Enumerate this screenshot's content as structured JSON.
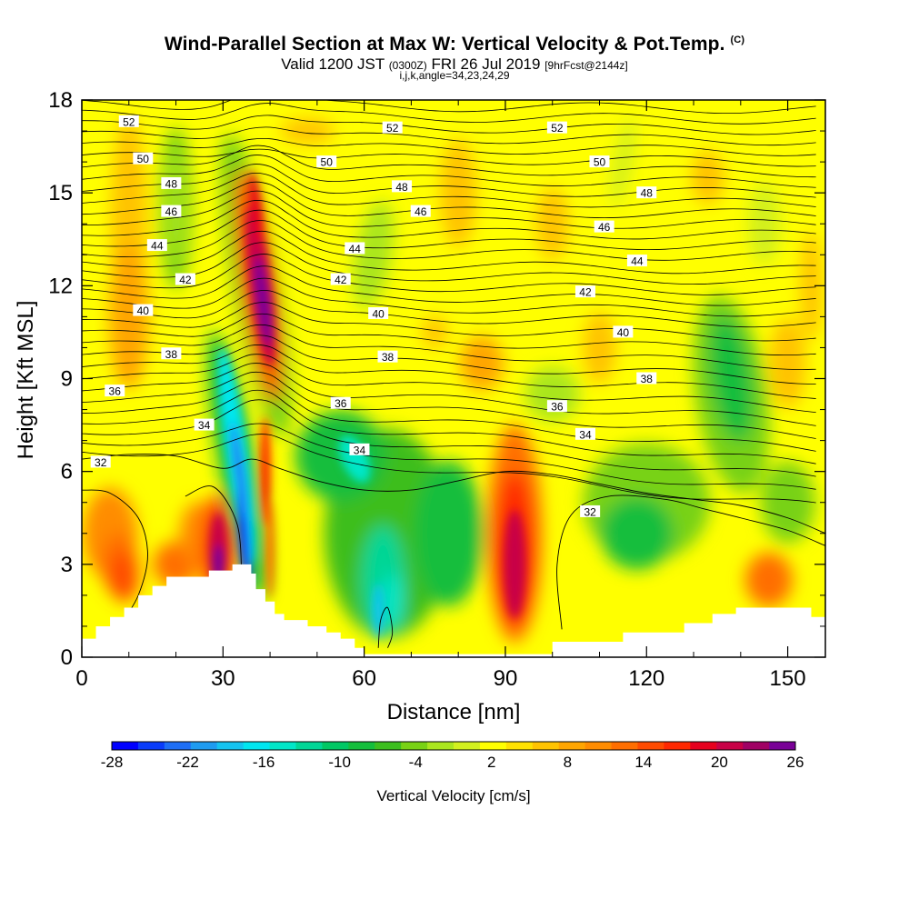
{
  "title": {
    "main": "Wind-Parallel Section at Max W: Vertical Velocity & Pot.Temp.",
    "copyright": "(C)",
    "valid_prefix": "Valid 1200 JST",
    "valid_utc": "(0300Z)",
    "valid_date": "FRI 26 Jul 2019",
    "forecast": "[9hrFcst@2144z]",
    "params": "i,j,k,angle=34,23,24,29"
  },
  "chart_data": {
    "type": "heatmap",
    "xlabel": "Distance [nm]",
    "ylabel": "Height [Kft MSL]",
    "xlim": [
      0,
      158
    ],
    "ylim": [
      0,
      18
    ],
    "x_ticks": [
      "0",
      "30",
      "60",
      "90",
      "120",
      "150"
    ],
    "y_ticks": [
      "0",
      "3",
      "6",
      "9",
      "12",
      "15",
      "18"
    ],
    "colorbar": {
      "label": "Vertical Velocity [cm/s]",
      "ticks": [
        "-28",
        "-22",
        "-16",
        "-10",
        "-4",
        "2",
        "8",
        "14",
        "20",
        "26"
      ],
      "colors": [
        "#0000ff",
        "#0a3cfa",
        "#1e6ef5",
        "#1e9bf0",
        "#14c3f0",
        "#00e6f0",
        "#00e6c8",
        "#00d696",
        "#00c864",
        "#14be3c",
        "#3cbe1e",
        "#78d214",
        "#aae61e",
        "#d2f01e",
        "#ffff00",
        "#ffe100",
        "#ffc300",
        "#ffa500",
        "#ff8c00",
        "#ff6e00",
        "#ff4b00",
        "#ff2800",
        "#e6001e",
        "#c80046",
        "#a00064",
        "#780096"
      ]
    },
    "theta_contours_K": [
      "32",
      "34",
      "36",
      "38",
      "40",
      "42",
      "44",
      "46",
      "48",
      "50",
      "52"
    ],
    "features": [
      {
        "name": "updraft core",
        "x_nm": [
          32,
          42
        ],
        "y_kft": [
          8.5,
          15
        ],
        "max_cm_s": 26
      },
      {
        "name": "downdraft core",
        "x_nm": [
          30,
          38
        ],
        "y_kft": [
          1.5,
          9
        ],
        "min_cm_s": -20
      },
      {
        "name": "low-level updraft",
        "x_nm": [
          26,
          32
        ],
        "y_kft": [
          2,
          5
        ],
        "max_cm_s": 24
      },
      {
        "name": "low-level updraft",
        "x_nm": [
          86,
          96
        ],
        "y_kft": [
          0.5,
          7
        ],
        "max_cm_s": 20
      },
      {
        "name": "downdraft band",
        "x_nm": [
          45,
          85
        ],
        "y_kft": [
          1,
          7
        ],
        "min_cm_s": -12
      },
      {
        "name": "downdraft region",
        "x_nm": [
          100,
          150
        ],
        "y_kft": [
          2,
          11
        ],
        "min_cm_s": -9
      }
    ]
  }
}
